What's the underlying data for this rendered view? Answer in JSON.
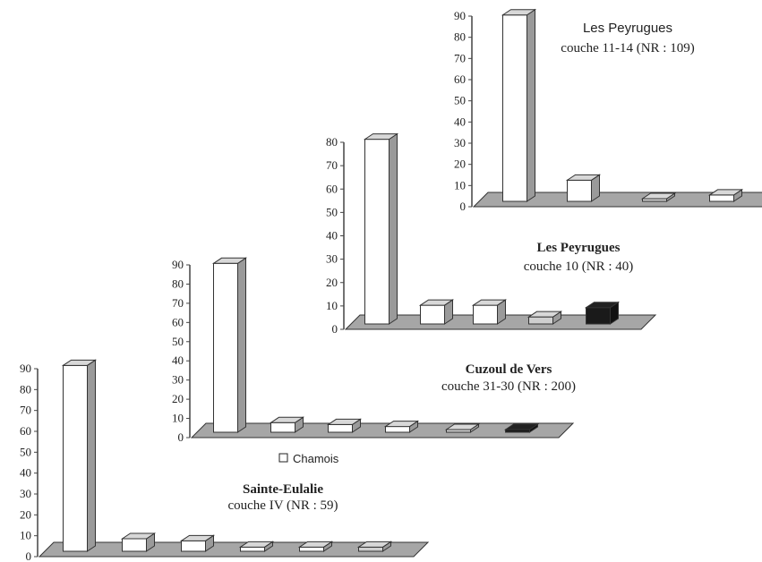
{
  "figure": {
    "legend": [
      {
        "name": "Chamois",
        "color": "#ffffff"
      }
    ]
  },
  "chart_data": [
    {
      "type": "bar",
      "title": "Sainte-Eulalie",
      "subtitle": "couche IV (NR : 59)",
      "ylim": [
        0,
        90
      ],
      "yticks": [
        0,
        10,
        20,
        30,
        40,
        50,
        60,
        70,
        80,
        90
      ],
      "grid": false,
      "series": [
        {
          "values": [
            89,
            6,
            5,
            2,
            2,
            2
          ],
          "colors": [
            "#ffffff",
            "#ffffff",
            "#ffffff",
            "#ffffff",
            "#ffffff",
            "#cfcfcf"
          ]
        }
      ]
    },
    {
      "type": "bar",
      "title": "Cuzoul de Vers",
      "subtitle": "couche 31-30 (NR : 200)",
      "ylim": [
        0,
        90
      ],
      "yticks": [
        0,
        10,
        20,
        30,
        40,
        50,
        60,
        70,
        80,
        90
      ],
      "grid": false,
      "series": [
        {
          "values": [
            88,
            5,
            4,
            3,
            1,
            1
          ],
          "colors": [
            "#ffffff",
            "#ffffff",
            "#ffffff",
            "#ffffff",
            "#cfcfcf",
            "#1a1a1a"
          ]
        }
      ]
    },
    {
      "type": "bar",
      "title": "Les Peyrugues",
      "subtitle": "couche 10 (NR : 40)",
      "ylim": [
        0,
        80
      ],
      "yticks": [
        0,
        10,
        20,
        30,
        40,
        50,
        60,
        70,
        80
      ],
      "grid": false,
      "series": [
        {
          "values": [
            79,
            8,
            8,
            3,
            7
          ],
          "colors": [
            "#ffffff",
            "#ffffff",
            "#ffffff",
            "#cfcfcf",
            "#1a1a1a"
          ]
        }
      ]
    },
    {
      "type": "bar",
      "title": "Les Peyrugues",
      "subtitle": "couche 11-14 (NR : 109)",
      "ylim": [
        0,
        90
      ],
      "yticks": [
        0,
        10,
        20,
        30,
        40,
        50,
        60,
        70,
        80,
        90
      ],
      "grid": false,
      "series": [
        {
          "values": [
            88,
            10,
            1,
            3
          ],
          "colors": [
            "#ffffff",
            "#ffffff",
            "#cfcfcf",
            "#ffffff"
          ]
        }
      ]
    }
  ]
}
